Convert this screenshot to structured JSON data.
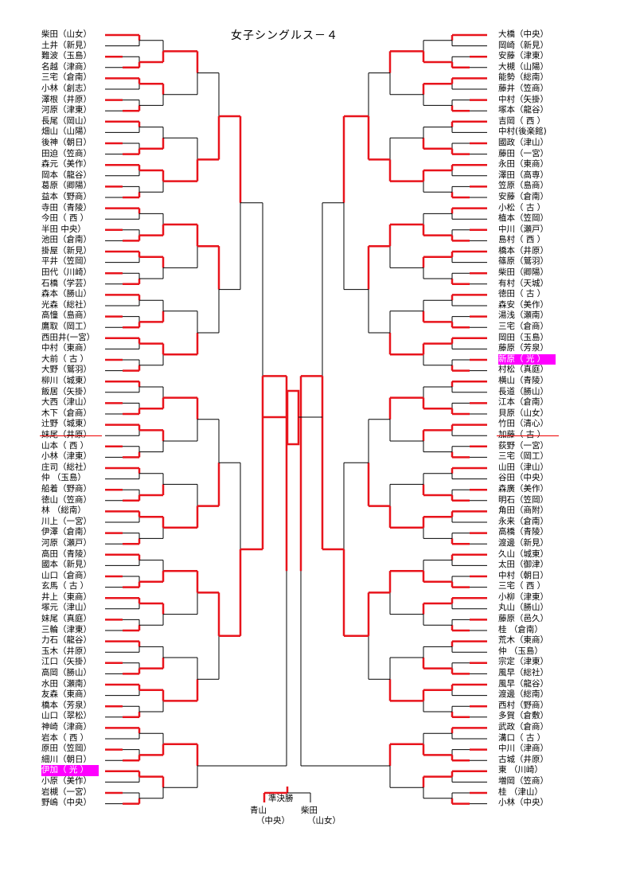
{
  "title": "女子シングルス－４",
  "left_players": [
    "柴田（山女）",
    "土井（新見）",
    "難波（玉島）",
    "名越（津商）",
    "三宅（倉南）",
    "小林（創志）",
    "澤根（井原）",
    "河原（津東）",
    "長尾（岡山）",
    "畑山（山陽）",
    "後神（朝日）",
    "田迫（笠商）",
    "森元（美作）",
    "岡本（龍谷）",
    "葛原（卿陽）",
    "益本（野商）",
    "寺田（青陵）",
    "今田（ 西 ）",
    "半田 中央）",
    "池田（倉南）",
    "掛屋（新見）",
    "平井（笠岡）",
    "田代（川崎）",
    "石橋（学芸）",
    "森本（勝山）",
    "光森（総社）",
    "高憧（島商）",
    "鷹取（岡工）",
    "西田井(一宮）",
    "中村（東商）",
    "大前（ 古 ）",
    "大野（鷲羽）",
    "柳川（城東）",
    "飯居（矢掛）",
    "大西（津山）",
    "木下（倉商）",
    "辻野（城東）",
    "妹尾（井原）",
    "山本（ 西 ）",
    "小林（津東）",
    "庄司（総社）",
    "仲 （玉島）",
    "船着（野商）",
    "徳山（笠商）",
    "林 （総南）",
    "川上（一宮）",
    "伊澤（倉南）",
    "河原（瀬戸）",
    "高田（青陵）",
    "國本（新見）",
    "山口（倉商）",
    "玄馬（ 古 ）",
    "井上（東商）",
    "塚元（津山）",
    "妹尾（真庭）",
    "三輪（津東）",
    "力石（龍谷）",
    "玉木（井原）",
    "江口（矢掛）",
    "高岡（勝山）",
    "水田（瀬南）",
    "友森（東商）",
    "橋本（芳泉）",
    "山口（翠松）",
    "神崎（津商）",
    "岩本（ 西 ）",
    "原田（笠岡）",
    "細川（朝日）",
    "伊加（ 光 ）",
    "小原（美作）",
    "岩槻（一宮）",
    "野嶋（中央）"
  ],
  "right_players": [
    "大橋（中央）",
    "岡崎（新見）",
    "安藤（津東）",
    "大槻（山陽）",
    "能勢（総南）",
    "藤井（笠商）",
    "中村（矢掛）",
    "塚本（龍谷）",
    "吉岡（ 西 ）",
    "中村(後楽館)",
    "國政（津山）",
    "藤田（一宮）",
    "永田（東商）",
    "澤田（高専）",
    "笠原（島商）",
    "安藤（倉南）",
    "小松（ 古 ）",
    "植本（笠岡）",
    "中川（瀬戸）",
    "島村（ 西 ）",
    "橋本（井原）",
    "篠原（鷲羽）",
    "柴田（卿陽）",
    "有村（天城）",
    "徳田（ 古 ）",
    "森安（美作）",
    "湯浅（瀬南）",
    "三宅（倉商）",
    "岡田（玉島）",
    "藤原（芳泉）",
    "新原（ 光 ）",
    "村松（真庭）",
    "横山（青陵）",
    "長道（勝山）",
    "江本（倉南）",
    "貝原（山女）",
    "竹田（清心）",
    "加藤（ 古 ）",
    "荻野（一宮）",
    "三宅（岡工）",
    "山田（津山）",
    "谷田（中央）",
    "森廣（美作）",
    "明石（笠岡）",
    "角田（商附）",
    "永来（倉南）",
    "高橋（青陵）",
    "渡邊（新見）",
    "久山（城東）",
    "太田（御津）",
    "中村（朝日）",
    "三宅（ 西 ）",
    "小柳（津東）",
    "丸山（勝山）",
    "藤原（邑久）",
    "桂 （倉南）",
    "荒木（東商）",
    "仲 （玉島）",
    "宗定（津東）",
    "風早（総社）",
    "風早（龍谷）",
    "渡邊（総南）",
    "西村（野商）",
    "多賀（倉敷）",
    "武政（倉商）",
    "溝口（ 古 ）",
    "中川（津商）",
    "古城（井原）",
    "東 （川崎）",
    "増岡（笠商）",
    "桂 （津山）",
    "小林（中央）"
  ],
  "final": {
    "label": "準決勝",
    "left_name": "青山",
    "left_school": "（中央）",
    "right_name": "柴田",
    "right_school": "（山女）"
  },
  "colors": {
    "winner_line": "#e8141c",
    "line": "#000000",
    "highlight": "#ff00ff"
  }
}
